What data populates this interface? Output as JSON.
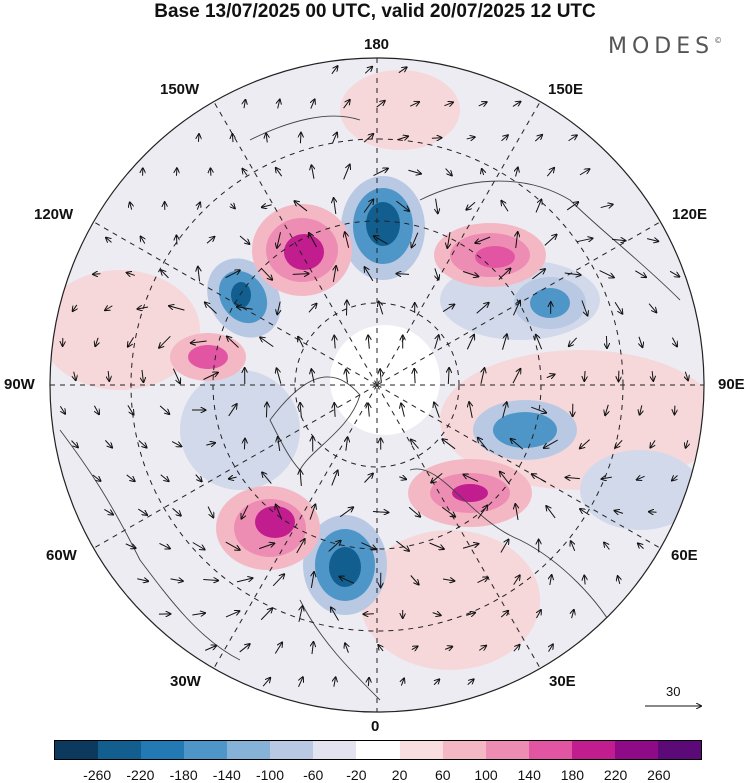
{
  "title": "Base 13/07/2025 00 UTC, valid 20/07/2025 12 UTC",
  "brand": {
    "name": "MODES",
    "mark": "©"
  },
  "longitude_labels": {
    "top": "180",
    "bottom": "0",
    "left": "90W",
    "right": "90E",
    "upper_left_1": "150W",
    "upper_left_2": "120W",
    "upper_right_1": "150E",
    "upper_right_2": "120E",
    "lower_left_1": "60W",
    "lower_left_2": "30W",
    "lower_right_1": "60E",
    "lower_right_2": "30E"
  },
  "vector_scale": {
    "label": "30"
  },
  "colorbar": {
    "colors": [
      "#0b3a5e",
      "#115e8f",
      "#2379b4",
      "#4f96c8",
      "#86b2d8",
      "#b9c9e4",
      "#e3e3f0",
      "#ffffff",
      "#f8dedf",
      "#f4b8c4",
      "#ee8db4",
      "#e255a3",
      "#c11d8e",
      "#8e0a86",
      "#5b0a78"
    ],
    "ticks": [
      "-260",
      "-220",
      "-180",
      "-140",
      "-100",
      "-60",
      "-20",
      "20",
      "60",
      "100",
      "140",
      "180",
      "220",
      "260"
    ]
  },
  "colors": {
    "negative_strong": "#2379b4",
    "positive_strong": "#c11d8e",
    "land_outline": "#444444"
  }
}
